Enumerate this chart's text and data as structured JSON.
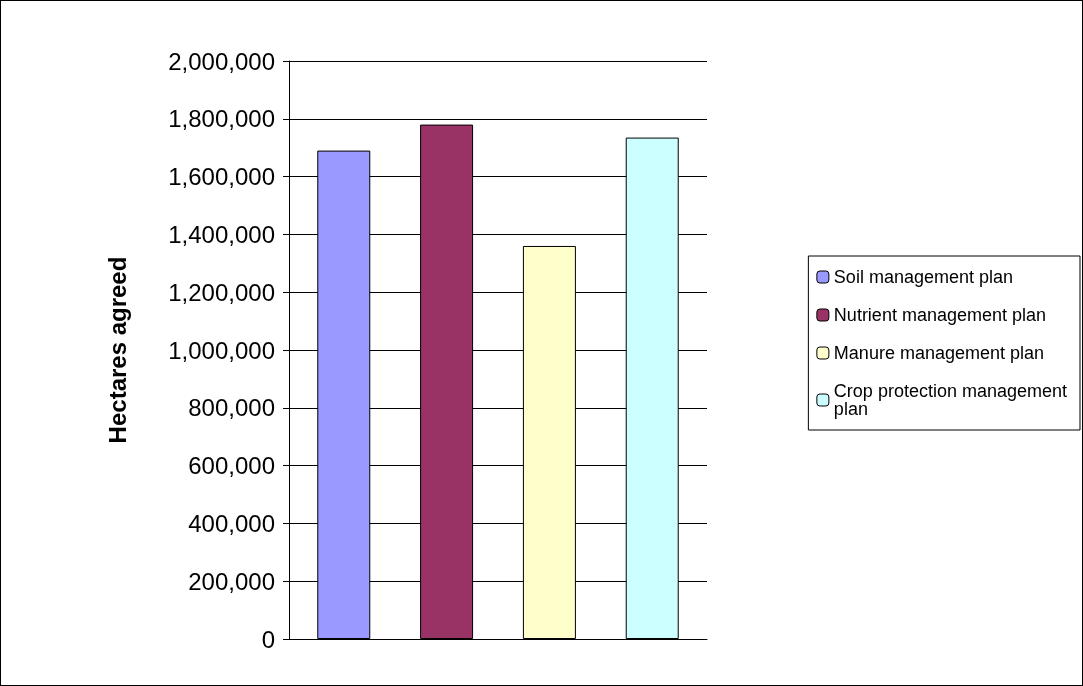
{
  "chart_data": {
    "type": "bar",
    "ylabel": "Hectares agreed",
    "categories": [
      null
    ],
    "series": [
      {
        "name": "Soil management plan",
        "color": "#9999ff",
        "values": [
          1690000
        ]
      },
      {
        "name": "Nutrient management plan",
        "color": "#993366",
        "values": [
          1780000
        ]
      },
      {
        "name": "Manure management plan",
        "color": "#ffffcc",
        "values": [
          1360000
        ]
      },
      {
        "name": "Crop protection management plan",
        "color": "#ccffff",
        "values": [
          1735000
        ]
      }
    ],
    "ylim": [
      0,
      2000000
    ],
    "yticks": [
      0,
      {
        "value": 200000,
        "label": "200,000"
      },
      {
        "value": 400000,
        "label": "400,000"
      },
      {
        "value": 600000,
        "label": "600,000"
      },
      {
        "value": 800000,
        "label": "800,000"
      },
      {
        "value": 1000000,
        "label": "1,000,000"
      },
      {
        "value": 1200000,
        "label": "1,200,000"
      },
      {
        "value": 1400000,
        "label": "1,400,000"
      },
      {
        "value": 1600000,
        "label": "1,600,000"
      },
      {
        "value": 1800000,
        "label": "1,800,000"
      },
      {
        "value": 2000000,
        "label": "2,000,000"
      }
    ],
    "grid": "y",
    "legend": "right"
  }
}
